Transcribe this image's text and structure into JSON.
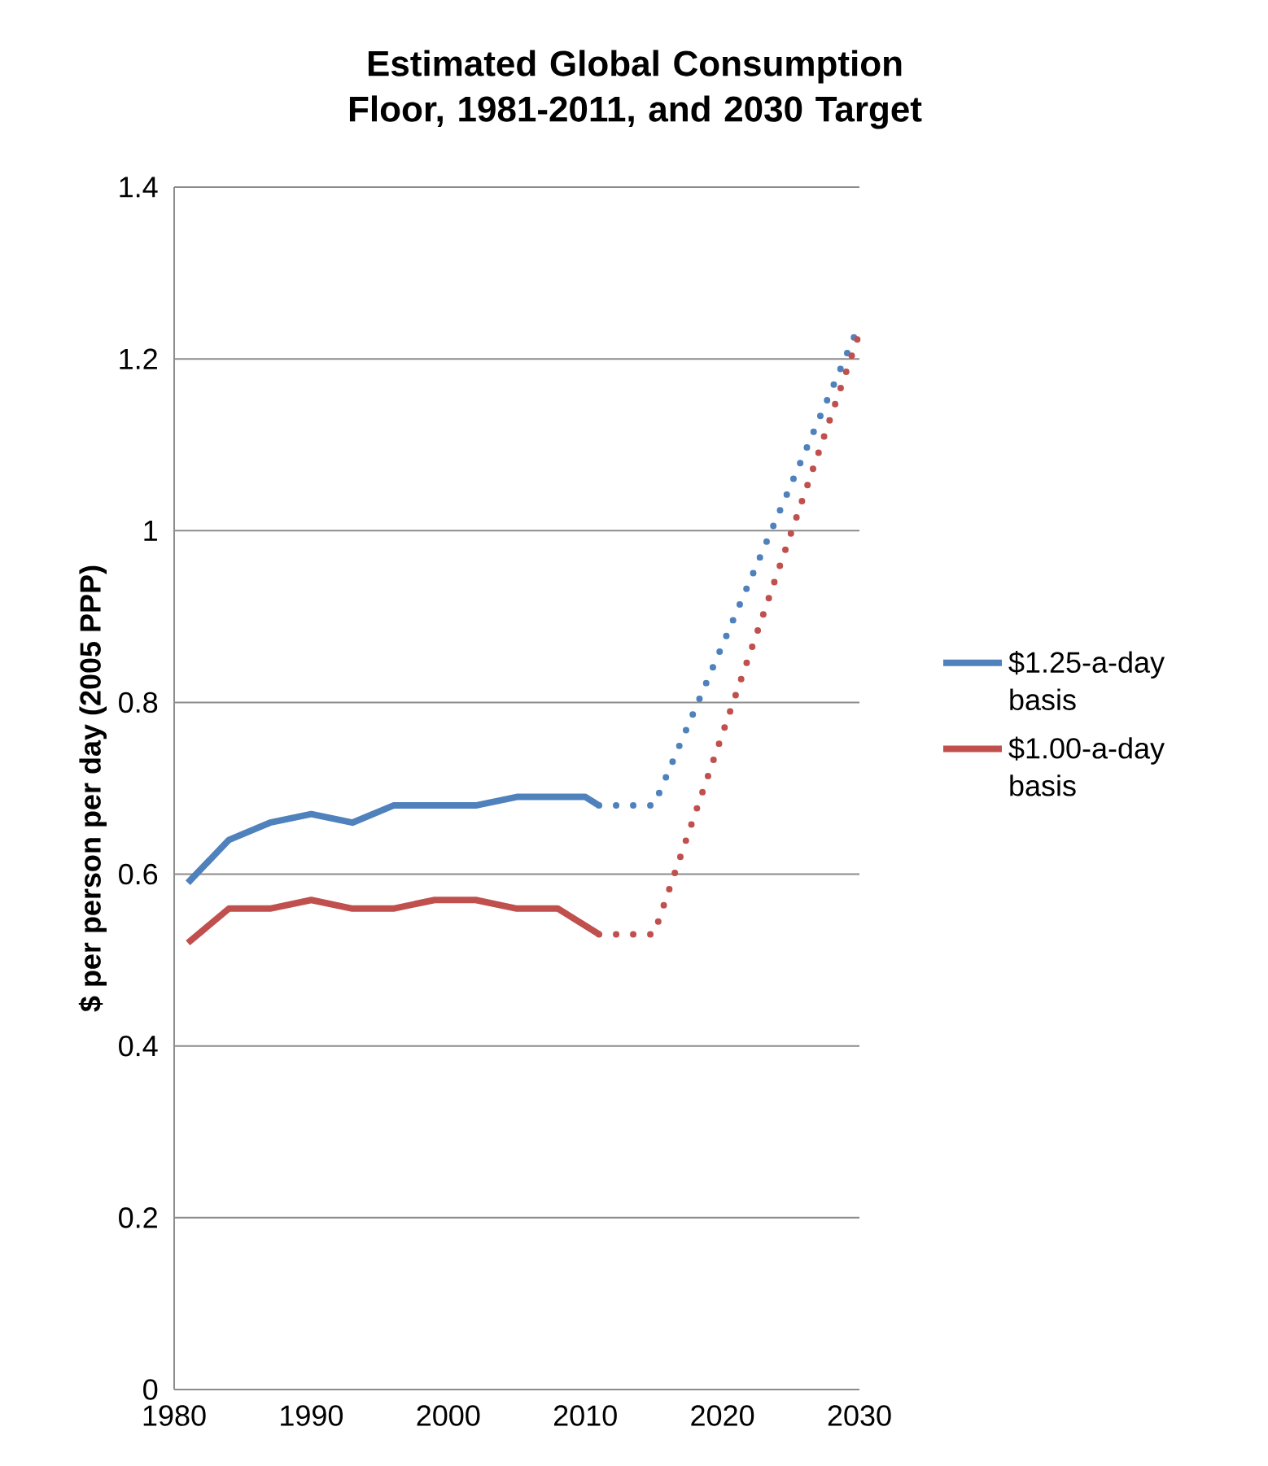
{
  "chart_data": {
    "type": "line",
    "title": "Estimated Global Consumption Floor, 1981-2011, and 2030 Target",
    "ylabel": "$ per person per day (2005 PPP)",
    "xlim": [
      1980,
      2030
    ],
    "xticks": [
      1980,
      1990,
      2000,
      2010,
      2020,
      2030
    ],
    "ylim": [
      0,
      1.4
    ],
    "yticks": [
      0,
      0.2,
      0.4,
      0.6,
      0.8,
      1,
      1.2,
      1.4
    ],
    "grid": "y",
    "legend": "right",
    "marker": "none",
    "series": [
      {
        "name": "$1.25-a-day basis",
        "color": "#4f81bd",
        "line_style": "solid",
        "x": [
          1981,
          1984,
          1987,
          1990,
          1993,
          1996,
          1999,
          2002,
          2005,
          2008,
          2010,
          2011
        ],
        "values": [
          0.59,
          0.64,
          0.66,
          0.67,
          0.66,
          0.68,
          0.68,
          0.68,
          0.69,
          0.69,
          0.69,
          0.68
        ]
      },
      {
        "name": "$1.00-a-day basis",
        "color": "#c0504d",
        "line_style": "solid",
        "x": [
          1981,
          1984,
          1987,
          1990,
          1993,
          1996,
          1999,
          2002,
          2005,
          2008,
          2011
        ],
        "values": [
          0.52,
          0.56,
          0.56,
          0.57,
          0.56,
          0.56,
          0.57,
          0.57,
          0.56,
          0.56,
          0.53
        ]
      },
      {
        "color": "#4f81bd",
        "line_style": "dotted",
        "x": [
          2011,
          2015,
          2030
        ],
        "values": [
          0.68,
          0.68,
          1.24
        ]
      },
      {
        "color": "#c0504d",
        "line_style": "dotted",
        "x": [
          2011,
          2015,
          2030
        ],
        "values": [
          0.53,
          0.53,
          1.23
        ]
      }
    ]
  }
}
